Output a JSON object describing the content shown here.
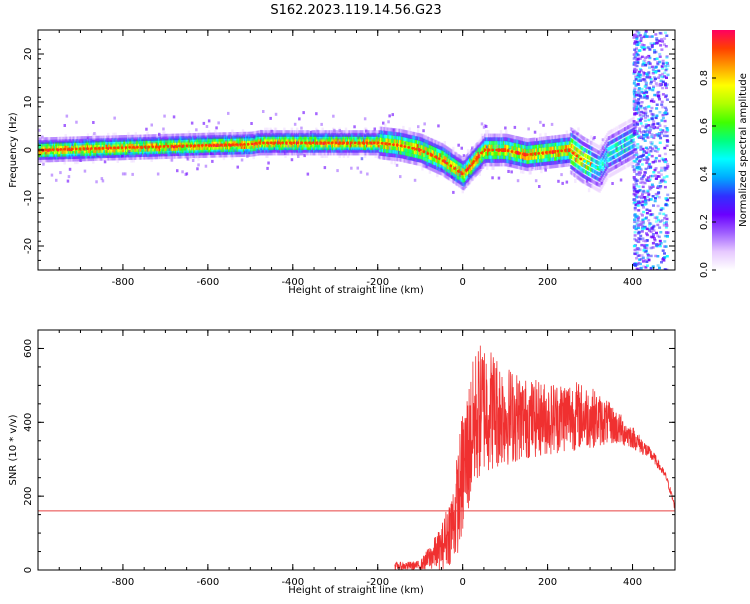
{
  "title": "S162.2023.119.14.56.G23",
  "colors": {
    "snr_line": "#f03030",
    "threshold_line": "#e84040",
    "colormap": [
      "#ffffff",
      "#e6c8ff",
      "#a060ff",
      "#6a00ff",
      "#3030ff",
      "#00aaff",
      "#00ffff",
      "#00ff80",
      "#40ff00",
      "#b0ff00",
      "#ffff00",
      "#ffa000",
      "#ff4000",
      "#ff0060"
    ]
  },
  "chart_data": [
    {
      "type": "heatmap",
      "xlabel": "Height of straight line (km)",
      "ylabel": "Frequency (Hz)",
      "xlim": [
        -1000,
        500
      ],
      "ylim": [
        -25,
        25
      ],
      "xticks": [
        -800,
        -600,
        -400,
        -200,
        0,
        200,
        400
      ],
      "yticks": [
        -20,
        -10,
        0,
        10,
        20
      ],
      "ridge_x": [
        -1000,
        -800,
        -600,
        -500,
        -480,
        -400,
        -300,
        -200,
        -150,
        -100,
        -50,
        0,
        50,
        100,
        150,
        200,
        250,
        280,
        300,
        320,
        340,
        360,
        380,
        400
      ],
      "ridge_y": [
        0,
        0.5,
        1,
        1.2,
        1.5,
        1.5,
        1.5,
        1.5,
        1,
        0,
        -2,
        -5,
        0,
        0,
        -1,
        -0.5,
        0,
        -2,
        -3,
        -4,
        -1,
        0,
        1,
        2
      ],
      "noise_region_x": [
        400,
        500
      ],
      "colorbar": {
        "label": "Normalized spectral amplitude",
        "range": [
          0,
          1
        ],
        "ticks": [
          "0.0",
          "0.2",
          "0.4",
          "0.6",
          "0.8"
        ]
      }
    },
    {
      "type": "line",
      "xlabel": "Height of straight line (km)",
      "ylabel": "SNR (10 * v/v)",
      "xlim": [
        -1000,
        500
      ],
      "ylim": [
        0,
        650
      ],
      "xticks": [
        -800,
        -600,
        -400,
        -200,
        0,
        200,
        400
      ],
      "yticks": [
        0,
        200,
        400,
        600
      ],
      "threshold": 160,
      "envelope_x": [
        -160,
        -100,
        -50,
        -20,
        0,
        30,
        50,
        100,
        150,
        200,
        250,
        300,
        350,
        400,
        450,
        480,
        500
      ],
      "envelope_upper": [
        20,
        25,
        120,
        250,
        440,
        600,
        630,
        560,
        520,
        510,
        520,
        500,
        450,
        390,
        320,
        260,
        180
      ],
      "envelope_lower": [
        0,
        0,
        0,
        20,
        80,
        220,
        260,
        280,
        300,
        310,
        320,
        330,
        340,
        330,
        290,
        240,
        160
      ]
    }
  ]
}
